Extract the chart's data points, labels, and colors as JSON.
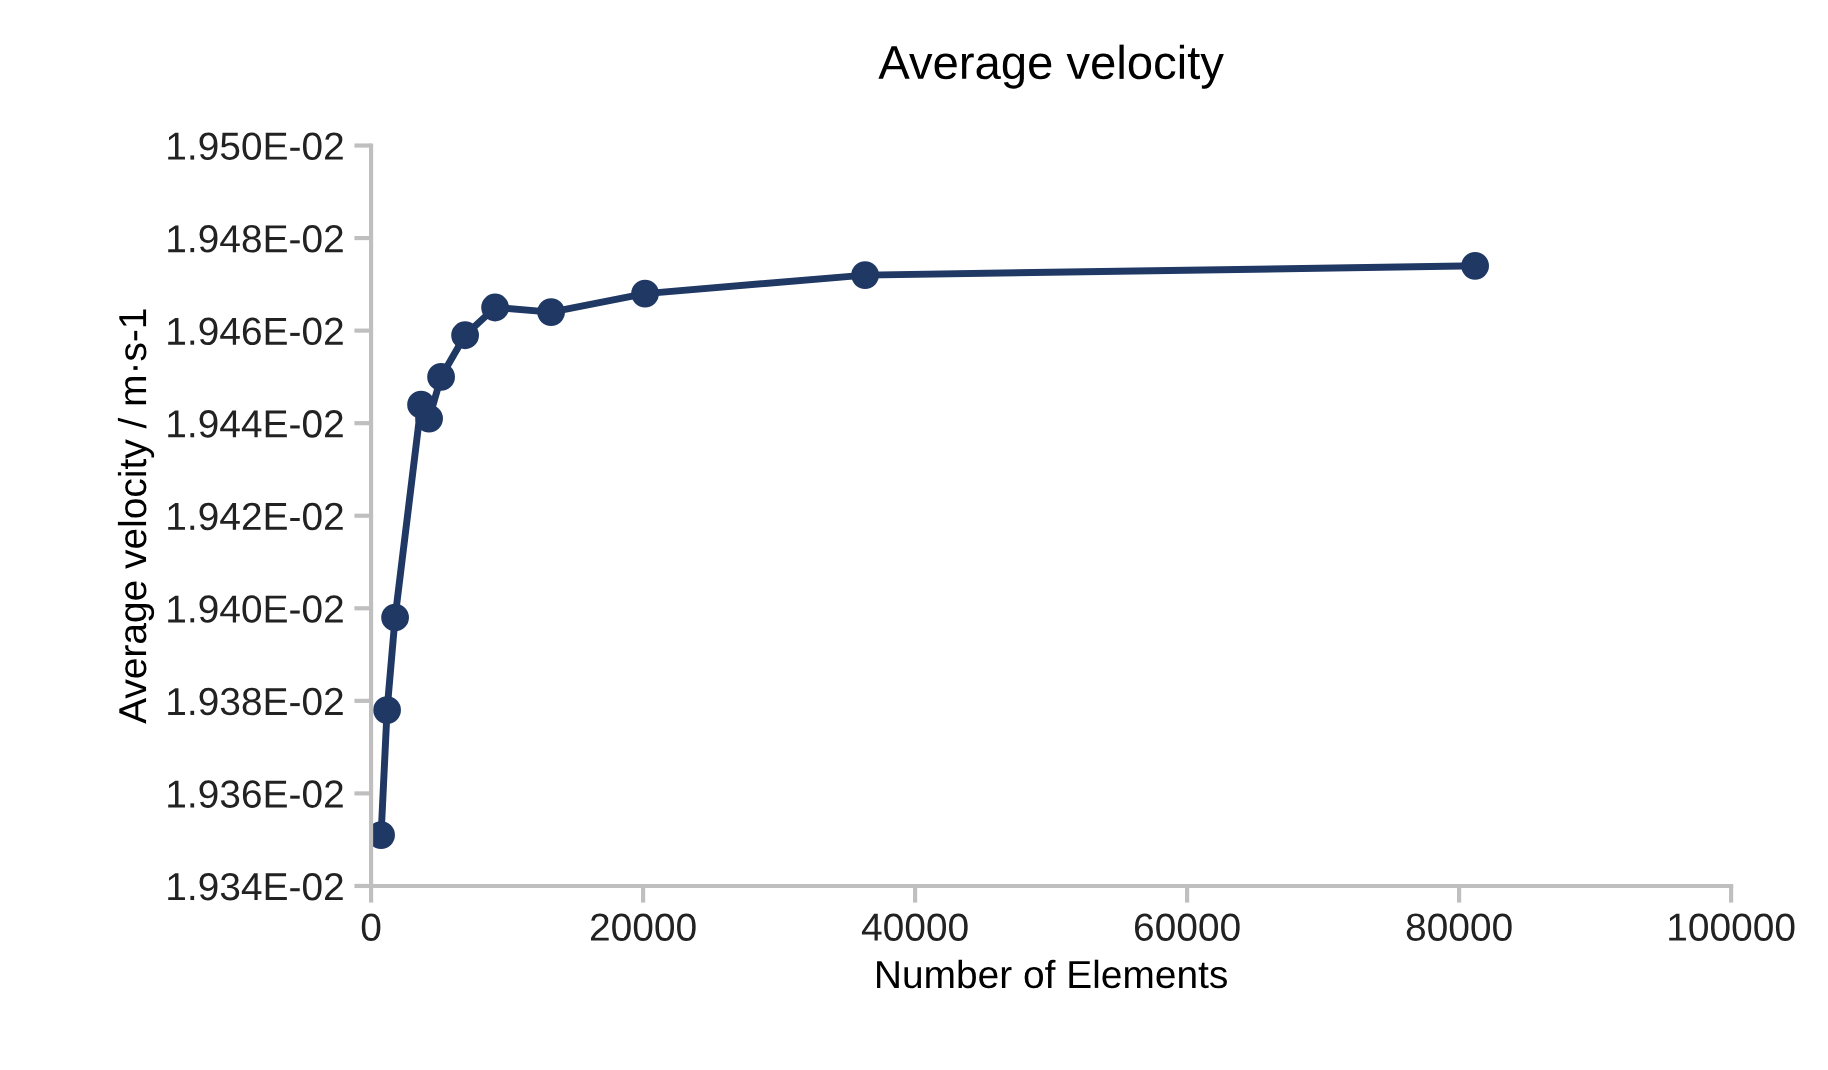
{
  "chart_data": {
    "type": "line",
    "title": "Average velocity",
    "xlabel": "Number of Elements",
    "ylabel": "Average velocity / m·s-1",
    "x": [
      735,
      1176,
      1765,
      3676,
      4265,
      5147,
      6912,
      9118,
      13235,
      20147,
      36324,
      81176
    ],
    "series": [
      {
        "color": "#203864",
        "values": [
          0.019351,
          0.019378,
          0.019398,
          0.019444,
          0.019441,
          0.01945,
          0.019459,
          0.019465,
          0.019464,
          0.019468,
          0.019472,
          0.019474
        ]
      }
    ],
    "xlim": [
      0,
      100000
    ],
    "xticks": [
      0,
      20000,
      40000,
      60000,
      80000,
      100000
    ],
    "ylim": [
      0.01934,
      0.0195
    ],
    "yticks": [
      {
        "value": 0.01934,
        "label": "1.934E-02"
      },
      {
        "value": 0.01936,
        "label": "1.936E-02"
      },
      {
        "value": 0.01938,
        "label": "1.938E-02"
      },
      {
        "value": 0.0194,
        "label": "1.940E-02"
      },
      {
        "value": 0.01942,
        "label": "1.942E-02"
      },
      {
        "value": 0.01944,
        "label": "1.944E-02"
      },
      {
        "value": 0.01946,
        "label": "1.946E-02"
      },
      {
        "value": 0.01948,
        "label": "1.948E-02"
      },
      {
        "value": 0.0195,
        "label": "1.950E-02"
      }
    ],
    "grid": false,
    "legend": false,
    "marker": "circle",
    "line_style": "solid"
  }
}
